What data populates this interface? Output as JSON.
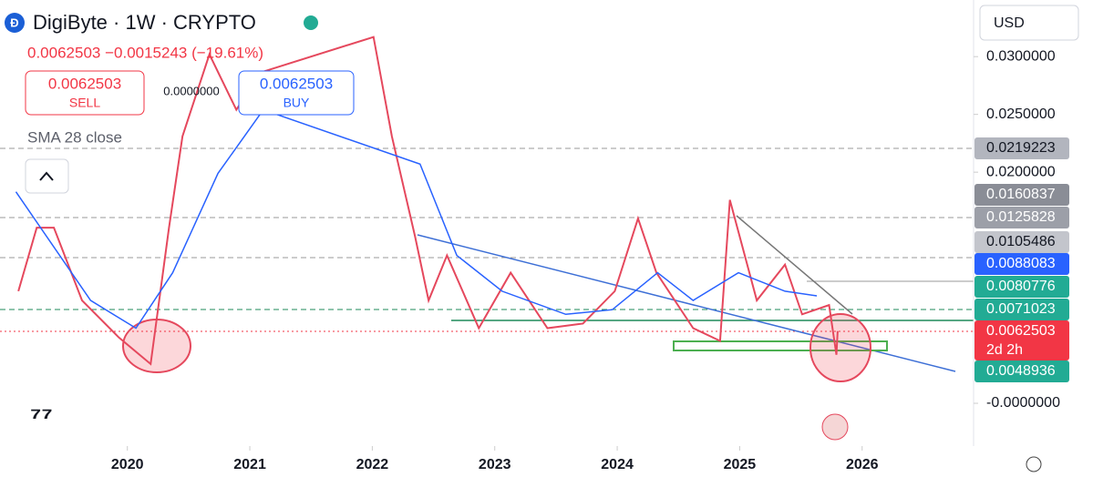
{
  "header": {
    "title": "DigiByte · 1W · CRYPTO",
    "price_change": "0.0062503 −0.0015243 (−19.61%)",
    "sell_price": "0.0062503",
    "sell": "SELL",
    "spread": "0.0000000",
    "buy_price": "0.0062503",
    "buy": "BUY",
    "indicator": "SMA 28 close",
    "currency": "USD"
  },
  "chart_data": {
    "type": "line",
    "xlim": [
      2018.96,
      2026.91
    ],
    "xticks": [
      2020,
      2021,
      2022,
      2023,
      2024,
      2025,
      2026
    ],
    "ylim": [
      -0.0037,
      0.0349
    ],
    "yticks": [
      {
        "value": 0.03,
        "label": "0.0300000"
      },
      {
        "value": 0.025,
        "label": "0.0250000"
      },
      {
        "value": 0.02,
        "label": "0.0200000"
      },
      {
        "value": 0,
        "label": "-0.0000000"
      }
    ],
    "series": [
      {
        "name": "DigiByte",
        "color": "#e5485d",
        "x": [
          2019.11,
          2019.26,
          2019.4,
          2019.63,
          2019.93,
          2020.19,
          2020.34,
          2020.45,
          2020.67,
          2020.89,
          2021.08,
          2022.01,
          2022.16,
          2022.35,
          2022.46,
          2022.61,
          2022.87,
          2023.13,
          2023.43,
          2023.72,
          2023.98,
          2024.17,
          2024.32,
          2024.62,
          2024.84,
          2024.92,
          2025.14,
          2025.37,
          2025.51,
          2025.73,
          2025.79,
          2025.8
        ],
        "values": [
          0.0097,
          0.0152,
          0.0152,
          0.0089,
          0.0057,
          0.0034,
          0.0152,
          0.0231,
          0.0302,
          0.0254,
          0.0286,
          0.0317,
          0.0231,
          0.0144,
          0.0089,
          0.0128,
          0.0065,
          0.0113,
          0.0065,
          0.0069,
          0.0097,
          0.016,
          0.0113,
          0.0065,
          0.0054,
          0.0176,
          0.0089,
          0.012,
          0.0077,
          0.0085,
          0.0042,
          0.0062503
        ]
      },
      {
        "name": "SMA 28",
        "color": "#2962ff",
        "x": [
          2019.09,
          2019.7,
          2020.07,
          2020.37,
          2020.74,
          2021.11,
          2022.39,
          2022.69,
          2023.06,
          2023.58,
          2023.96,
          2024.33,
          2024.62,
          2024.99,
          2025.37,
          2025.63
        ],
        "values": [
          0.0183,
          0.0089,
          0.0065,
          0.0113,
          0.0199,
          0.0254,
          0.0207,
          0.0128,
          0.0097,
          0.0077,
          0.0081,
          0.0113,
          0.0089,
          0.0113,
          0.0097,
          0.0093
        ]
      }
    ],
    "price_labels": [
      {
        "label": "0.0219223",
        "color": "#b2b5be"
      },
      {
        "label": "0.0160837",
        "color": "#8a8d96"
      },
      {
        "label": "0.0125828",
        "color": "#9c9fa8"
      },
      {
        "label": "0.0105486",
        "color": "#c3c5cc"
      },
      {
        "label": "0.0088083",
        "color": "#2962ff"
      },
      {
        "label": "0.0080776",
        "color": "#22ab94"
      },
      {
        "label": "0.0071023",
        "color": "#22ab94"
      },
      {
        "label": "0.0062503",
        "sub": "2d 2h",
        "color": "#f23645"
      },
      {
        "label": "0.0048936",
        "color": "#22ab94"
      }
    ]
  }
}
